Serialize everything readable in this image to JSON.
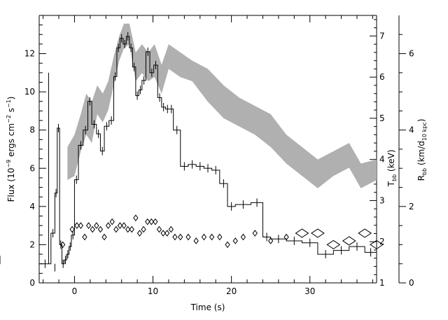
{
  "chart_data": {
    "type": "line",
    "xlabel": "Time (s)",
    "ylabel_left": {
      "main": "Flux (10",
      "sup1": "−9",
      "mid": " ergs cm",
      "sup2": "−2",
      "mid2": " s",
      "sup3": "−1",
      "end": ")"
    },
    "ylabel_right1": {
      "main": "T",
      "sub": "bb",
      "end": " (keV)"
    },
    "ylabel_right2": {
      "main": "R",
      "sub": "bb",
      "mid": " (km/d",
      "sub2": "10 kpc",
      "end": ")"
    },
    "xlim": [
      -4.5,
      38.5
    ],
    "ylim_left": [
      0,
      14
    ],
    "ylim_right1": [
      1,
      7.5
    ],
    "ylim_right2": [
      0,
      7
    ],
    "x_ticks": [
      0,
      10,
      20,
      30
    ],
    "y_ticks_left": [
      0,
      2,
      4,
      6,
      8,
      10,
      12
    ],
    "y_ticks_right1": [
      1,
      2,
      3,
      4,
      5,
      6,
      7
    ],
    "y_ticks_right2": [
      0,
      2,
      4,
      6
    ],
    "series": [
      {
        "style": "step",
        "color": "#000000",
        "edges": [
          -5,
          -3,
          -2.5,
          -2.2,
          -1.9,
          -1.6,
          -1.3,
          -1,
          -0.7,
          -0.4,
          0,
          0.5,
          1.1,
          1.7,
          2.2,
          2.8,
          3.3,
          3.8,
          4.4,
          5,
          5.4,
          5.8,
          6.2,
          6.6,
          7,
          7.4,
          7.8,
          8.2,
          8.6,
          9.1,
          9.6,
          10.1,
          10.6,
          11.1,
          11.6,
          12.1,
          12.6,
          13.5,
          14.5,
          15.5,
          16.5,
          17.5,
          18.5,
          19.5,
          20.5,
          22.5,
          24,
          25,
          27,
          29,
          31,
          33,
          35,
          37,
          38.5
        ],
        "values": [
          1.0,
          2.6,
          4.7,
          8.1,
          2.0,
          1.0,
          1.2,
          1.5,
          1.9,
          2.5,
          5.4,
          7.2,
          8.0,
          9.5,
          8.3,
          7.8,
          6.9,
          8.2,
          8.5,
          10.8,
          12.3,
          12.8,
          12.5,
          12.9,
          12.3,
          11.3,
          9.8,
          10.1,
          10.6,
          12.1,
          11.0,
          11.4,
          9.7,
          9.2,
          9.1,
          9.1,
          8.0,
          6.1,
          6.2,
          6.1,
          6.0,
          5.9,
          5.2,
          4.0,
          4.1,
          4.2,
          2.4,
          2.3,
          2.2,
          2.1,
          1.5,
          1.7,
          1.9,
          1.6,
          1.2
        ]
      },
      {
        "style": "spikes",
        "color": "#000000",
        "x": [
          -3.3,
          -2.5
        ],
        "values": [
          11.0,
          0.6
        ]
      },
      {
        "style": "band",
        "axis": "right1",
        "color": "#b0b0b0",
        "x": [
          -0.9,
          0,
          0.8,
          1.5,
          2.2,
          2.9,
          3.6,
          4.3,
          5,
          5.7,
          6.3,
          7,
          7.8,
          8.6,
          9.4,
          10.2,
          11.1,
          12,
          13.5,
          15,
          17,
          19,
          21,
          23,
          25,
          27,
          29,
          31,
          33,
          35,
          36.5,
          38.5
        ],
        "low": [
          3.5,
          3.6,
          4.2,
          4.6,
          4.4,
          5.1,
          4.9,
          5.2,
          5.8,
          6.4,
          6.7,
          6.8,
          5.9,
          6.1,
          5.9,
          6.0,
          5.6,
          6.2,
          6.0,
          5.9,
          5.4,
          5.0,
          4.8,
          4.6,
          4.3,
          3.9,
          3.6,
          3.3,
          3.6,
          3.8,
          3.3,
          3.5
        ],
        "high": [
          4.3,
          4.6,
          5.1,
          5.6,
          5.4,
          5.8,
          5.6,
          5.9,
          6.5,
          7.0,
          7.3,
          7.3,
          6.6,
          6.8,
          6.6,
          6.8,
          6.3,
          6.8,
          6.6,
          6.4,
          6.2,
          5.8,
          5.5,
          5.3,
          5.1,
          4.6,
          4.3,
          4.0,
          4.2,
          4.4,
          3.9,
          4.0
        ]
      },
      {
        "style": "diamonds",
        "axis": "right2",
        "color": "#000000",
        "x": [
          -1.5,
          -0.3,
          0.3,
          0.8,
          1.3,
          1.8,
          2.3,
          2.8,
          3.3,
          3.8,
          4.3,
          4.8,
          5.3,
          5.8,
          6.3,
          6.8,
          7.3,
          7.8,
          8.3,
          8.8,
          9.3,
          9.8,
          10.3,
          10.8,
          11.3,
          11.8,
          12.3,
          12.8,
          13.5,
          14.5,
          15.5,
          16.5,
          17.5,
          18.5,
          19.5,
          20.5,
          21.5,
          23,
          25,
          27,
          29,
          31,
          33,
          35,
          37,
          38.5
        ],
        "values": [
          1.0,
          1.4,
          1.5,
          1.5,
          1.2,
          1.5,
          1.4,
          1.5,
          1.4,
          1.2,
          1.5,
          1.6,
          1.4,
          1.5,
          1.5,
          1.4,
          1.4,
          1.7,
          1.3,
          1.4,
          1.6,
          1.6,
          1.6,
          1.4,
          1.3,
          1.3,
          1.4,
          1.2,
          1.2,
          1.2,
          1.1,
          1.2,
          1.2,
          1.2,
          1.0,
          1.1,
          1.2,
          1.3,
          1.1,
          1.2,
          1.3,
          1.3,
          1.0,
          1.1,
          1.3,
          1.0
        ],
        "big": [
          false,
          false,
          false,
          false,
          false,
          false,
          false,
          false,
          false,
          false,
          false,
          false,
          false,
          false,
          false,
          false,
          false,
          false,
          false,
          false,
          false,
          false,
          false,
          false,
          false,
          false,
          false,
          false,
          false,
          false,
          false,
          false,
          false,
          false,
          false,
          false,
          false,
          false,
          false,
          false,
          true,
          true,
          true,
          true,
          true,
          true
        ]
      }
    ]
  }
}
